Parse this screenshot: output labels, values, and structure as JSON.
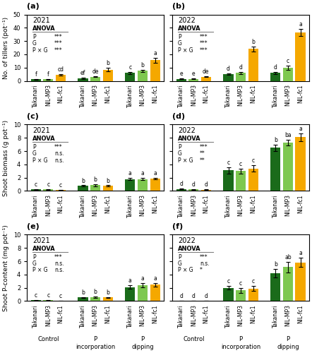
{
  "chart_data": [
    {
      "type": "bar",
      "title": "(a)",
      "subtitle": "2021",
      "y_label": "No. of tillers (pot⁻¹)",
      "categories": [
        "Takanari",
        "NIL-MP3",
        "NIL-fc1",
        "Takanari",
        "NIL-MP3",
        "NIL-fc1",
        "Takanari",
        "NIL-MP3",
        "NIL-fc1"
      ],
      "values": [
        1.1,
        1.3,
        4.5,
        2.0,
        3.2,
        8.5,
        6.0,
        7.5,
        15.5
      ],
      "errors": [
        0.2,
        0.3,
        0.6,
        0.4,
        0.5,
        1.5,
        0.7,
        1.0,
        2.0
      ],
      "letters": [
        "f",
        "f",
        "cd",
        "ef",
        "de",
        "b",
        "c",
        "b",
        "a"
      ],
      "colors": [
        "#1a6b1a",
        "#7ec850",
        "#f5a800",
        "#1a6b1a",
        "#7ec850",
        "#f5a800",
        "#1a6b1a",
        "#7ec850",
        "#f5a800"
      ],
      "annotations": {
        "heading": "ANOVA",
        "rows": [
          {
            "label": "P",
            "value": "***"
          },
          {
            "label": "G",
            "value": "***"
          },
          {
            "label": "P × G",
            "value": "***"
          }
        ]
      },
      "ylim": [
        0,
        50
      ],
      "yticks": [
        0,
        10,
        20,
        30,
        40,
        50
      ]
    },
    {
      "type": "bar",
      "title": "(b)",
      "subtitle": "2022",
      "categories": [
        "Takanari",
        "NIL-MP3",
        "NIL-fc1",
        "Takanari",
        "NIL-MP3",
        "NIL-fc1",
        "Takanari",
        "NIL-MP3",
        "NIL-fc1"
      ],
      "values": [
        1.5,
        1.5,
        3.2,
        5.0,
        6.0,
        24.0,
        6.0,
        10.0,
        36.5
      ],
      "errors": [
        0.3,
        0.3,
        0.5,
        0.7,
        0.8,
        2.0,
        0.8,
        1.5,
        2.5
      ],
      "letters": [
        "e",
        "e",
        "de",
        "d",
        "d",
        "b",
        "d",
        "c",
        "a"
      ],
      "colors": [
        "#1a6b1a",
        "#7ec850",
        "#f5a800",
        "#1a6b1a",
        "#7ec850",
        "#f5a800",
        "#1a6b1a",
        "#7ec850",
        "#f5a800"
      ],
      "annotations": {
        "heading": "ANOVA",
        "rows": [
          {
            "label": "P",
            "value": "***"
          },
          {
            "label": "G",
            "value": "***"
          },
          {
            "label": "P × G",
            "value": "***"
          }
        ]
      },
      "ylim": [
        0,
        50
      ],
      "yticks": [
        0,
        10,
        20,
        30,
        40,
        50
      ],
      "tick_labels": "x"
    },
    {
      "type": "bar",
      "title": "(c)",
      "subtitle": "2021",
      "y_label": "Shoot biomass (g pot⁻¹)",
      "categories": [
        "Takanari",
        "NIL-MP3",
        "NIL-fc1",
        "Takanari",
        "NIL-MP3",
        "NIL-fc1",
        "Takanari",
        "NIL-MP3",
        "NIL-fc1"
      ],
      "values": [
        0.22,
        0.25,
        0.18,
        0.75,
        0.85,
        0.75,
        1.8,
        1.8,
        1.85
      ],
      "errors": [
        0.04,
        0.05,
        0.03,
        0.1,
        0.12,
        0.1,
        0.15,
        0.15,
        0.12
      ],
      "letters": [
        "c",
        "c",
        "c",
        "b",
        "b",
        "b",
        "a",
        "a",
        "a"
      ],
      "colors": [
        "#1a6b1a",
        "#7ec850",
        "#f5a800",
        "#1a6b1a",
        "#7ec850",
        "#f5a800",
        "#1a6b1a",
        "#7ec850",
        "#f5a800"
      ],
      "annotations": {
        "heading": "ANOVA",
        "rows": [
          {
            "label": "P",
            "value": "***"
          },
          {
            "label": "G",
            "value": "n.s."
          },
          {
            "label": "P × G",
            "value": "n.s."
          }
        ]
      },
      "ylim": [
        0,
        10
      ],
      "yticks": [
        0,
        2,
        4,
        6,
        8,
        10
      ]
    },
    {
      "type": "bar",
      "title": "(d)",
      "subtitle": "2022",
      "categories": [
        "Takanari",
        "NIL-MP3",
        "NIL-fc1",
        "Takanari",
        "NIL-MP3",
        "NIL-fc1",
        "Takanari",
        "NIL-MP3",
        "NIL-fc1"
      ],
      "values": [
        0.3,
        0.25,
        0.2,
        3.1,
        3.0,
        3.4,
        6.5,
        7.3,
        8.1
      ],
      "errors": [
        0.05,
        0.04,
        0.04,
        0.5,
        0.4,
        0.5,
        0.5,
        0.4,
        0.6
      ],
      "letters": [
        "d",
        "d",
        "d",
        "c",
        "c",
        "c",
        "b",
        "ba",
        "a"
      ],
      "colors": [
        "#1a6b1a",
        "#7ec850",
        "#f5a800",
        "#1a6b1a",
        "#7ec850",
        "#f5a800",
        "#1a6b1a",
        "#7ec850",
        "#f5a800"
      ],
      "annotations": {
        "heading": "ANOVA",
        "rows": [
          {
            "label": "P",
            "value": "***"
          },
          {
            "label": "G",
            "value": "**"
          },
          {
            "label": "P × G",
            "value": "**"
          }
        ]
      },
      "ylim": [
        0,
        10
      ],
      "yticks": [
        0,
        2,
        4,
        6,
        8,
        10
      ],
      "tick_labels": "x"
    },
    {
      "type": "bar",
      "title": "(e)",
      "subtitle": "2021",
      "y_label": "Shoot P-content (mg pot⁻¹)",
      "categories": [
        "Takanari",
        "NIL-MP3",
        "NIL-fc1",
        "Takanari",
        "NIL-MP3",
        "NIL-fc1",
        "Takanari",
        "NIL-MP3",
        "NIL-fc1"
      ],
      "groups": [
        "Control",
        "P\nincorporation",
        "P\ndipping"
      ],
      "values": [
        0.1,
        0.1,
        0.05,
        0.55,
        0.6,
        0.55,
        2.1,
        2.4,
        2.45
      ],
      "errors": [
        0.02,
        0.02,
        0.01,
        0.08,
        0.1,
        0.08,
        0.25,
        0.3,
        0.3
      ],
      "letters": [
        "c",
        "c",
        "c",
        "b",
        "b",
        "b",
        "a",
        "a",
        "a"
      ],
      "colors": [
        "#1a6b1a",
        "#7ec850",
        "#f5a800",
        "#1a6b1a",
        "#7ec850",
        "#f5a800",
        "#1a6b1a",
        "#7ec850",
        "#f5a800"
      ],
      "annotations": {
        "heading": "ANOVA",
        "rows": [
          {
            "label": "P",
            "value": "***"
          },
          {
            "label": "G",
            "value": "n.s."
          },
          {
            "label": "P × G",
            "value": "n.s."
          }
        ]
      },
      "ylim": [
        0,
        10
      ],
      "yticks": [
        0,
        2,
        4,
        6,
        8,
        10
      ]
    },
    {
      "type": "bar",
      "title": "(f)",
      "subtitle": "2022",
      "categories": [
        "Takanari",
        "NIL-MP3",
        "NIL-fc1",
        "Takanari",
        "NIL-MP3",
        "NIL-fc1",
        "Takanari",
        "NIL-MP3",
        "NIL-fc1"
      ],
      "groups": [
        "Control",
        "P\nincorporation",
        "P\ndipping"
      ],
      "values": [
        0.05,
        0.05,
        0.05,
        2.0,
        1.6,
        1.9,
        4.2,
        5.1,
        5.8
      ],
      "errors": [
        0.01,
        0.01,
        0.01,
        0.3,
        0.4,
        0.35,
        0.6,
        0.8,
        0.7
      ],
      "letters": [
        "d",
        "d",
        "d",
        "c",
        "c",
        "c",
        "b",
        "ab",
        "a"
      ],
      "colors": [
        "#1a6b1a",
        "#7ec850",
        "#f5a800",
        "#1a6b1a",
        "#7ec850",
        "#f5a800",
        "#1a6b1a",
        "#7ec850",
        "#f5a800"
      ],
      "annotations": {
        "heading": "ANOVA",
        "rows": [
          {
            "label": "P",
            "value": "***"
          },
          {
            "label": "G",
            "value": "n.s."
          },
          {
            "label": "P × G",
            "value": "*"
          }
        ]
      },
      "ylim": [
        0,
        10
      ],
      "yticks": [
        0,
        2,
        4,
        6,
        8,
        10
      ],
      "tick_labels": "x"
    }
  ]
}
